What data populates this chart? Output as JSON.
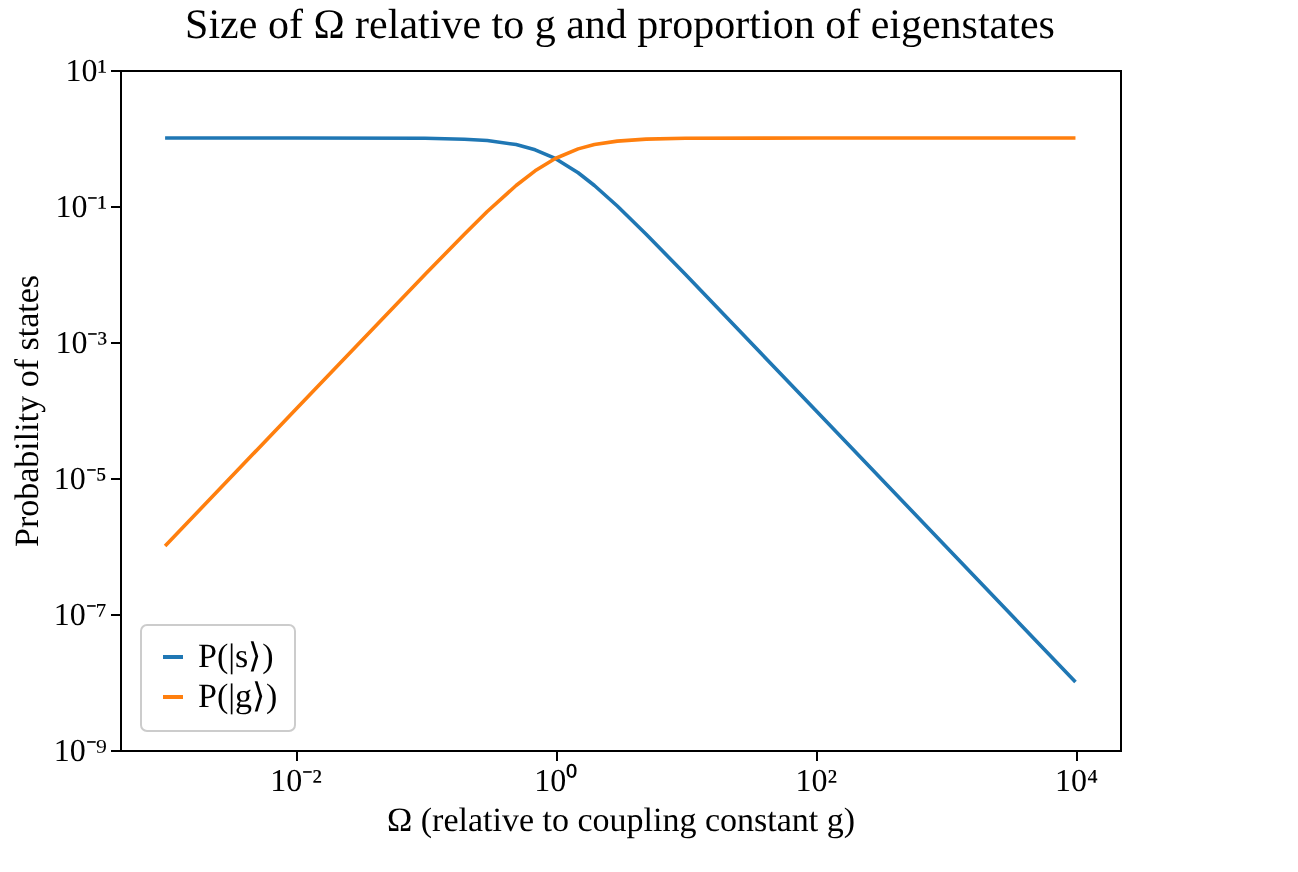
{
  "chart_data": {
    "type": "line",
    "title": "Size of Ω relative to g and proportion of eigenstates",
    "xlabel": "Ω (relative to coupling constant g)",
    "ylabel": "Probability of states",
    "x": [
      0.001,
      0.01,
      0.1,
      0.2,
      0.3,
      0.5,
      0.7,
      1,
      1.5,
      2,
      3,
      5,
      10,
      100,
      1000,
      10000
    ],
    "series": [
      {
        "name": "P(|s⟩)",
        "color": "#1f77b4",
        "values": [
          1,
          0.9999,
          0.99,
          0.96,
          0.917,
          0.8,
          0.671,
          0.5,
          0.308,
          0.2,
          0.1,
          0.0385,
          0.0099,
          0.0001,
          1e-06,
          1e-08
        ]
      },
      {
        "name": "P(|g⟩)",
        "color": "#ff7f0e",
        "values": [
          1e-06,
          0.0001,
          0.0099,
          0.0385,
          0.083,
          0.2,
          0.329,
          0.5,
          0.692,
          0.8,
          0.9,
          0.962,
          0.99,
          0.9999,
          1,
          1
        ]
      }
    ],
    "log": "xy",
    "xlim": [
      0.00045,
      22000
    ],
    "ylim": [
      1e-09,
      10
    ],
    "xticks": [
      {
        "value": 0.01,
        "label": "10⁻²"
      },
      {
        "value": 1,
        "label": "10⁰"
      },
      {
        "value": 100,
        "label": "10²"
      },
      {
        "value": 10000,
        "label": "10⁴"
      }
    ],
    "yticks": [
      {
        "value": 1e-09,
        "label": "10⁻⁹"
      },
      {
        "value": 1e-07,
        "label": "10⁻⁷"
      },
      {
        "value": 1e-05,
        "label": "10⁻⁵"
      },
      {
        "value": 0.001,
        "label": "10⁻³"
      },
      {
        "value": 0.1,
        "label": "10⁻¹"
      },
      {
        "value": 10,
        "label": "10¹"
      }
    ],
    "grid": false,
    "legend": "bottom left"
  }
}
